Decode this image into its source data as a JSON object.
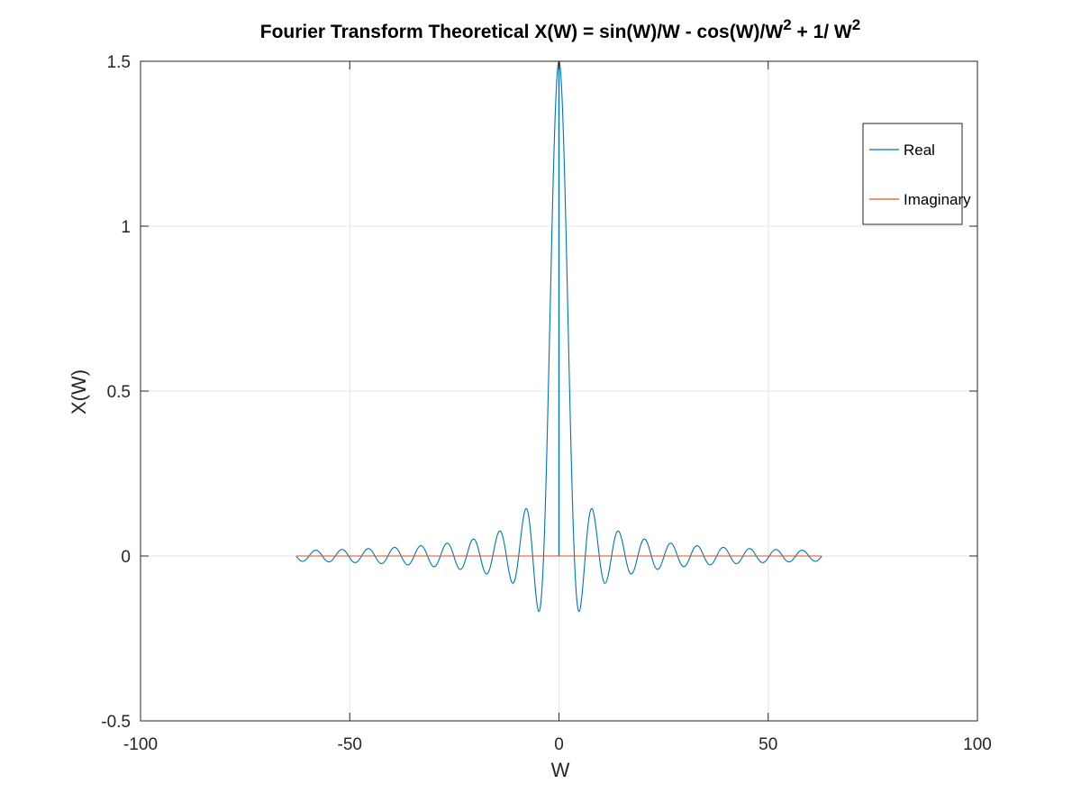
{
  "chart_data": {
    "type": "line",
    "title": {
      "parts": [
        {
          "text": "Fourier Transform Theoretical X(W) = sin(W)/W - cos(W)/W",
          "sup": false
        },
        {
          "text": "2",
          "sup": true
        },
        {
          "text": " + 1/ W",
          "sup": false
        },
        {
          "text": "2",
          "sup": true
        }
      ]
    },
    "xlabel": "W",
    "ylabel": "X(W)",
    "xlim": [
      -100,
      100
    ],
    "ylim": [
      -0.5,
      1.5
    ],
    "xticks": [
      -100,
      -50,
      0,
      50,
      100
    ],
    "xtick_labels": [
      "-100",
      "-50",
      "0",
      "50",
      "100"
    ],
    "yticks": [
      -0.5,
      0,
      0.5,
      1,
      1.5
    ],
    "ytick_labels": [
      "-0.5",
      "0",
      "0.5",
      "1",
      "1.5"
    ],
    "grid": true,
    "legend_position": "top-right",
    "series": [
      {
        "name": "Real",
        "color": "#0072bd",
        "function": "sin(W)/W - cos(W)/W^2 + 1/W^2",
        "x_range": [
          -62.8,
          62.8
        ],
        "peak": [
          0,
          1.5
        ],
        "min": [
          -4.5,
          -0.17
        ]
      },
      {
        "name": "Imaginary",
        "color": "#d95319",
        "function": "0",
        "x_range": [
          -62.8,
          62.8
        ],
        "constant": 0
      }
    ]
  }
}
